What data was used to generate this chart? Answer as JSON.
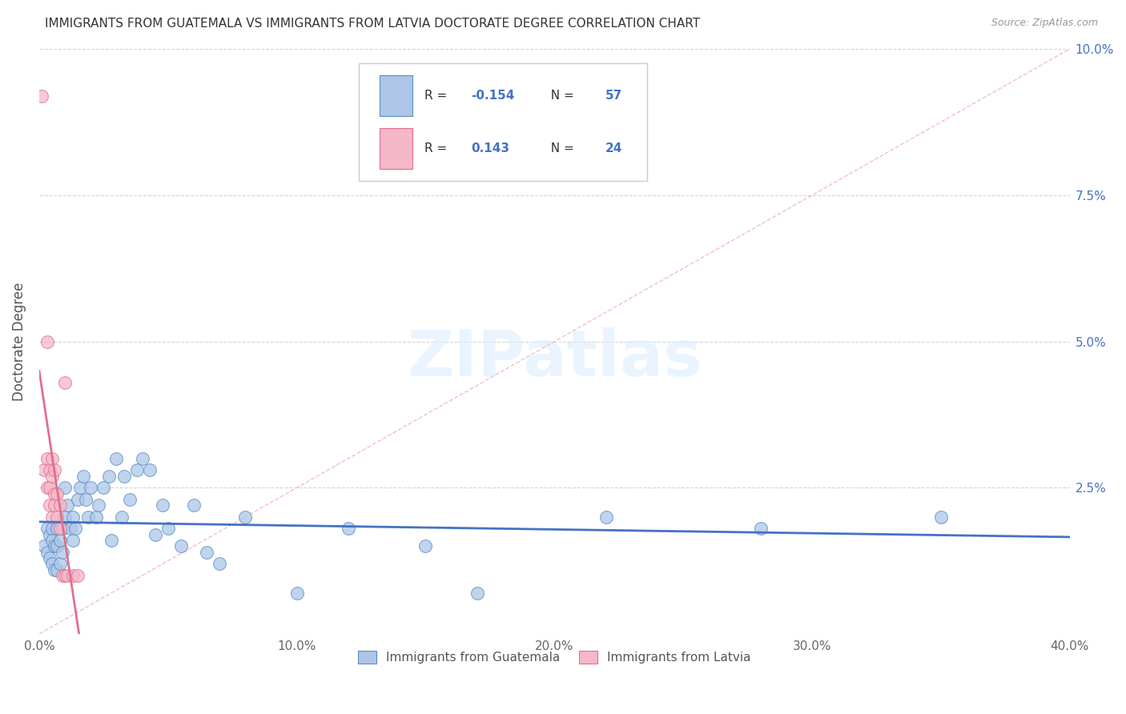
{
  "title": "IMMIGRANTS FROM GUATEMALA VS IMMIGRANTS FROM LATVIA DOCTORATE DEGREE CORRELATION CHART",
  "source": "Source: ZipAtlas.com",
  "ylabel": "Doctorate Degree",
  "xlim": [
    0.0,
    0.4
  ],
  "ylim": [
    0.0,
    0.1
  ],
  "xticks": [
    0.0,
    0.1,
    0.2,
    0.3,
    0.4
  ],
  "xtick_labels": [
    "0.0%",
    "10.0%",
    "20.0%",
    "30.0%",
    "40.0%"
  ],
  "yticks": [
    0.0,
    0.025,
    0.05,
    0.075,
    0.1
  ],
  "ytick_labels": [
    "",
    "2.5%",
    "5.0%",
    "7.5%",
    "10.0%"
  ],
  "legend_labels_bottom": [
    "Immigrants from Guatemala",
    "Immigrants from Latvia"
  ],
  "guatemala_color": "#adc6e8",
  "latvia_color": "#f5b8c8",
  "guatemala_edge_color": "#5b8ec4",
  "latvia_edge_color": "#e07090",
  "guatemala_line_color": "#4472c4",
  "latvia_line_color": "#e07090",
  "diag_line_color": "#f0b8c8",
  "R_guatemala": -0.154,
  "N_guatemala": 57,
  "R_latvia": 0.143,
  "N_latvia": 24,
  "guatemala_x": [
    0.002,
    0.003,
    0.003,
    0.004,
    0.004,
    0.005,
    0.005,
    0.005,
    0.006,
    0.006,
    0.007,
    0.007,
    0.007,
    0.008,
    0.008,
    0.009,
    0.009,
    0.01,
    0.01,
    0.011,
    0.012,
    0.013,
    0.013,
    0.014,
    0.015,
    0.016,
    0.017,
    0.018,
    0.019,
    0.02,
    0.022,
    0.023,
    0.025,
    0.027,
    0.028,
    0.03,
    0.032,
    0.033,
    0.035,
    0.038,
    0.04,
    0.043,
    0.045,
    0.048,
    0.05,
    0.055,
    0.06,
    0.065,
    0.07,
    0.08,
    0.1,
    0.12,
    0.15,
    0.17,
    0.22,
    0.28,
    0.35
  ],
  "guatemala_y": [
    0.015,
    0.018,
    0.014,
    0.017,
    0.013,
    0.018,
    0.016,
    0.012,
    0.015,
    0.011,
    0.018,
    0.015,
    0.011,
    0.016,
    0.012,
    0.018,
    0.014,
    0.025,
    0.02,
    0.022,
    0.018,
    0.02,
    0.016,
    0.018,
    0.023,
    0.025,
    0.027,
    0.023,
    0.02,
    0.025,
    0.02,
    0.022,
    0.025,
    0.027,
    0.016,
    0.03,
    0.02,
    0.027,
    0.023,
    0.028,
    0.03,
    0.028,
    0.017,
    0.022,
    0.018,
    0.015,
    0.022,
    0.014,
    0.012,
    0.02,
    0.007,
    0.018,
    0.015,
    0.007,
    0.02,
    0.018,
    0.02
  ],
  "latvia_x": [
    0.001,
    0.002,
    0.003,
    0.003,
    0.003,
    0.004,
    0.004,
    0.004,
    0.005,
    0.005,
    0.005,
    0.006,
    0.006,
    0.006,
    0.007,
    0.007,
    0.008,
    0.008,
    0.009,
    0.01,
    0.01,
    0.011,
    0.013,
    0.015
  ],
  "latvia_y": [
    0.092,
    0.028,
    0.05,
    0.03,
    0.025,
    0.028,
    0.025,
    0.022,
    0.03,
    0.027,
    0.02,
    0.028,
    0.024,
    0.022,
    0.024,
    0.02,
    0.022,
    0.018,
    0.01,
    0.01,
    0.043,
    0.01,
    0.01,
    0.01
  ]
}
